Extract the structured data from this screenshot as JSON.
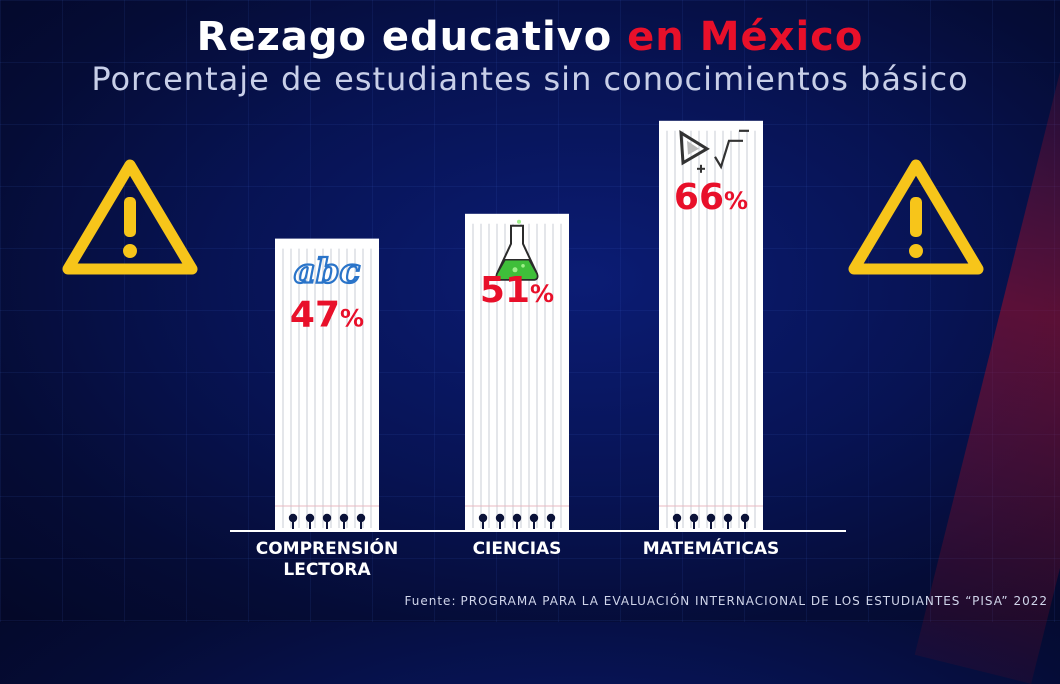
{
  "header": {
    "title_part1": "Rezago educativo",
    "title_part2": "en México",
    "subtitle": "Porcentaje de estudiantes sin conocimientos básico"
  },
  "chart_data": {
    "type": "bar",
    "title": "Rezago educativo en México",
    "subtitle": "Porcentaje de estudiantes sin conocimientos básico",
    "categories": [
      "COMPRENSIÓN LECTORA",
      "CIENCIAS",
      "MATEMÁTICAS"
    ],
    "category_lines": [
      [
        "COMPRENSIÓN",
        "LECTORA"
      ],
      [
        "CIENCIAS"
      ],
      [
        "MATEMÁTICAS"
      ]
    ],
    "values": [
      47,
      51,
      66
    ],
    "value_labels": [
      "47",
      "51",
      "66"
    ],
    "unit": "%",
    "icons": [
      "abc-icon",
      "flask-icon",
      "math-tools-icon"
    ],
    "icon_texts": [
      "abc",
      "",
      ""
    ],
    "ylim": [
      0,
      100
    ],
    "grid": false,
    "legend": "none"
  },
  "source": {
    "label": "Fuente:",
    "text": "PROGRAMA PARA LA EVALUACIÓN INTERNACIONAL DE LOS ESTUDIANTES “PISA” 2022"
  },
  "colors": {
    "accent": "#e8102a",
    "warning": "#f7c51a",
    "bar": "#ffffff",
    "value_text": "#e8102a",
    "abc_text": "#2a74c9"
  }
}
